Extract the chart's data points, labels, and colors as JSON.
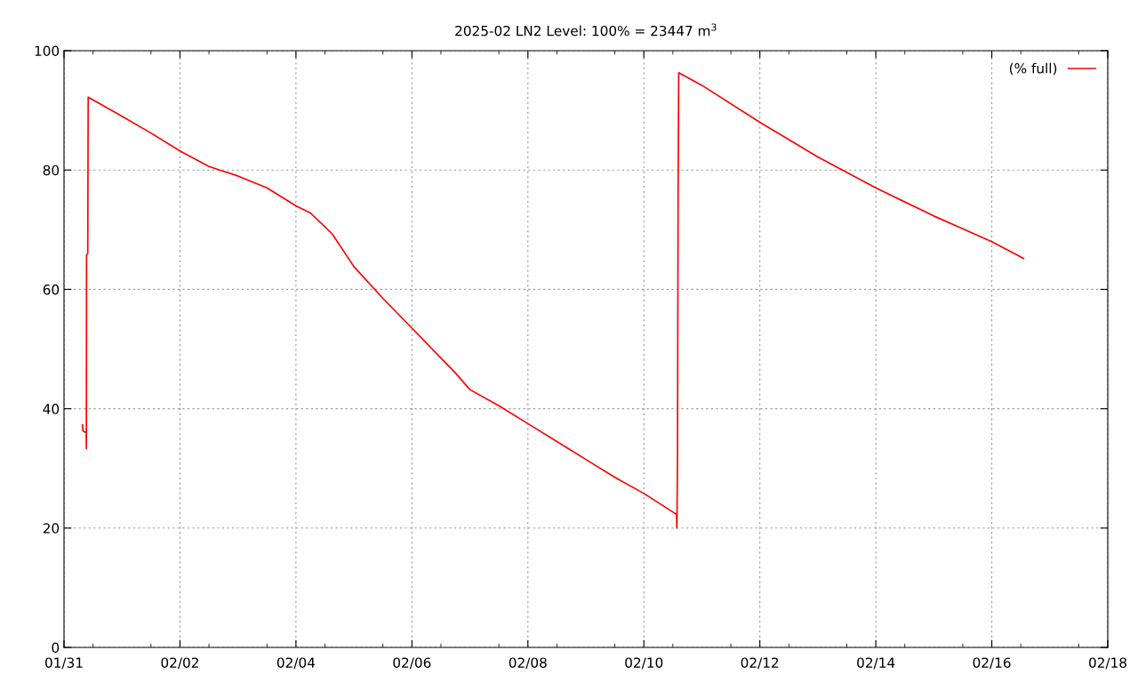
{
  "chart_data": {
    "type": "line",
    "title": "2025-02 LN2 Level: 100% = 23447 m$^{3}$",
    "x": [
      "2025-01-31T07:40",
      "2025-01-31T07:50",
      "2025-01-31T09:10",
      "2025-01-31T09:15",
      "2025-01-31T09:20",
      "2025-01-31T09:50",
      "2025-01-31T10:00",
      "2025-02-01T00:00",
      "2025-02-01T12:00",
      "2025-02-02T00:00",
      "2025-02-02T12:00",
      "2025-02-03T00:00",
      "2025-02-03T12:00",
      "2025-02-04T00:00",
      "2025-02-04T06:00",
      "2025-02-04T15:00",
      "2025-02-05T00:00",
      "2025-02-05T12:00",
      "2025-02-06T00:00",
      "2025-02-06T12:00",
      "2025-02-06T18:00",
      "2025-02-07T00:00",
      "2025-02-07T12:00",
      "2025-02-08T00:00",
      "2025-02-08T12:00",
      "2025-02-09T00:00",
      "2025-02-09T12:00",
      "2025-02-10T00:00",
      "2025-02-10T13:30",
      "2025-02-10T13:40",
      "2025-02-10T13:55",
      "2025-02-10T14:10",
      "2025-02-10T14:25",
      "2025-02-11T00:00",
      "2025-02-12T00:00",
      "2025-02-13T00:00",
      "2025-02-14T00:00",
      "2025-02-15T00:00",
      "2025-02-16T00:00",
      "2025-02-16T13:10"
    ],
    "series": [
      {
        "name": "(% full)",
        "color": "#ff0000",
        "values": [
          37.3,
          36.3,
          36.0,
          33.3,
          65.8,
          66.0,
          92.2,
          89.0,
          86.2,
          83.2,
          80.6,
          79.0,
          77.0,
          74.0,
          72.8,
          69.3,
          63.8,
          58.5,
          53.5,
          48.5,
          46.0,
          43.2,
          40.5,
          37.5,
          34.5,
          31.5,
          28.5,
          25.8,
          22.3,
          20.0,
          32.0,
          75.0,
          96.3,
          94.2,
          88.0,
          82.2,
          77.0,
          72.3,
          68.0,
          65.2
        ]
      }
    ],
    "xlim": [
      "2025-01-31",
      "2025-02-18"
    ],
    "xticks": [
      {
        "value": "2025-01-31",
        "label": "01/31"
      },
      {
        "value": "2025-02-02",
        "label": "02/02"
      },
      {
        "value": "2025-02-04",
        "label": "02/04"
      },
      {
        "value": "2025-02-06",
        "label": "02/06"
      },
      {
        "value": "2025-02-08",
        "label": "02/08"
      },
      {
        "value": "2025-02-10",
        "label": "02/10"
      },
      {
        "value": "2025-02-12",
        "label": "02/12"
      },
      {
        "value": "2025-02-14",
        "label": "02/14"
      },
      {
        "value": "2025-02-16",
        "label": "02/16"
      },
      {
        "value": "2025-02-18",
        "label": "02/18"
      }
    ],
    "ylim": [
      0,
      100
    ],
    "yticks": [
      0,
      20,
      40,
      60,
      80,
      100
    ],
    "grid": true,
    "legend": "top right",
    "marker": "none",
    "line_style": "solid"
  }
}
